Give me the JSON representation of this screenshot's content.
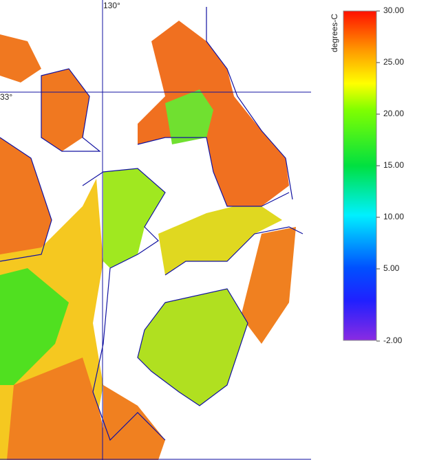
{
  "map": {
    "lon_label": "130°",
    "lat_label": "33°"
  },
  "colorbar": {
    "title": "degrees-C",
    "min": -2,
    "max": 30,
    "ticks": [
      {
        "value": 30,
        "label": "30.00"
      },
      {
        "value": 25,
        "label": "25.00"
      },
      {
        "value": 20,
        "label": "20.00"
      },
      {
        "value": 15,
        "label": "15.00"
      },
      {
        "value": 10,
        "label": "10.00"
      },
      {
        "value": 5,
        "label": "5.00"
      },
      {
        "value": -2,
        "label": "-2.00"
      }
    ]
  }
}
